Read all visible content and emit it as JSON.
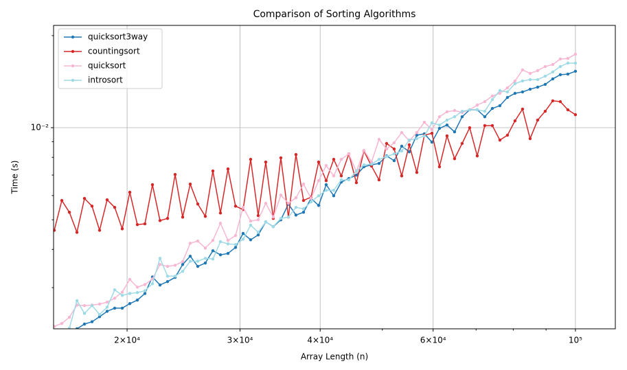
{
  "chart_data": {
    "type": "line",
    "title": "Comparison of Sorting Algorithms",
    "xlabel": "Array Length (n)",
    "ylabel": "Time (s)",
    "xscale": "log",
    "yscale": "log",
    "grid": true,
    "legend": "upper left",
    "xlim": [
      15360,
      115400
    ],
    "ylim": [
      0.0022,
      0.0216
    ],
    "xticks": [
      {
        "value": 20000,
        "label": "2×10⁴"
      },
      {
        "value": 30000,
        "label": "3×10⁴"
      },
      {
        "value": 40000,
        "label": "4×10⁴"
      },
      {
        "value": 60000,
        "label": "6×10⁴"
      },
      {
        "value": 100000,
        "label": "10⁵"
      }
    ],
    "xminorticks": [
      50000,
      70000,
      80000,
      90000
    ],
    "yticks": [
      {
        "value": 0.01,
        "label": "10⁻²"
      }
    ],
    "yminorticks": [
      0.003,
      0.004,
      0.005,
      0.006,
      0.007,
      0.008,
      0.009,
      0.02
    ],
    "x": [
      15399,
      15822,
      16257,
      16704,
      17163,
      17634,
      18119,
      18617,
      19129,
      19655,
      20195,
      20750,
      21320,
      21906,
      22508,
      23127,
      23763,
      24416,
      25087,
      25776,
      26485,
      27213,
      27961,
      28729,
      29519,
      30330,
      31164,
      32020,
      32900,
      33804,
      34733,
      35688,
      36669,
      37677,
      38713,
      39777,
      40870,
      41993,
      43147,
      44333,
      45552,
      46804,
      48090,
      49412,
      50770,
      52165,
      53599,
      55072,
      56586,
      58141,
      59739,
      61381,
      63068,
      64802,
      66583,
      68413,
      70293,
      72225,
      74210,
      76250,
      78346,
      80499,
      82712,
      84985,
      87321,
      89721,
      92187,
      94721,
      97325,
      100000
    ],
    "series": [
      {
        "name": "quicksort3way",
        "color": "#1f77b4",
        "values": [
          0.00207,
          0.00212,
          0.00216,
          0.0022,
          0.00228,
          0.00232,
          0.00241,
          0.00251,
          0.00257,
          0.00257,
          0.00266,
          0.00273,
          0.00287,
          0.00325,
          0.00306,
          0.00314,
          0.00324,
          0.00357,
          0.0038,
          0.00352,
          0.00361,
          0.00396,
          0.00384,
          0.00388,
          0.00406,
          0.00451,
          0.0043,
          0.00446,
          0.00492,
          0.00475,
          0.005,
          0.00563,
          0.00518,
          0.00529,
          0.00587,
          0.00557,
          0.00651,
          0.00599,
          0.00664,
          0.00682,
          0.007,
          0.00745,
          0.00756,
          0.00764,
          0.00809,
          0.0078,
          0.0087,
          0.00834,
          0.00945,
          0.00955,
          0.00897,
          0.00995,
          0.0102,
          0.00969,
          0.01086,
          0.01144,
          0.01144,
          0.01086,
          0.01156,
          0.0118,
          0.01256,
          0.01295,
          0.01309,
          0.01336,
          0.01357,
          0.01385,
          0.01444,
          0.0149,
          0.01497,
          0.01529
        ]
      },
      {
        "name": "countingsort",
        "color": "#d62728",
        "values": [
          0.00462,
          0.00578,
          0.00529,
          0.00455,
          0.00587,
          0.00554,
          0.00462,
          0.00581,
          0.00549,
          0.00467,
          0.00615,
          0.00482,
          0.00485,
          0.00651,
          0.00497,
          0.00505,
          0.00703,
          0.0051,
          0.00654,
          0.00563,
          0.00513,
          0.00722,
          0.00526,
          0.00733,
          0.00554,
          0.0054,
          0.00788,
          0.00516,
          0.00772,
          0.00505,
          0.00797,
          0.0051,
          0.00817,
          0.00578,
          0.00593,
          0.00772,
          0.00671,
          0.00788,
          0.00696,
          0.00821,
          0.00661,
          0.00839,
          0.00749,
          0.00675,
          0.00888,
          0.00852,
          0.00696,
          0.00879,
          0.00714,
          0.00945,
          0.00959,
          0.00745,
          0.0094,
          0.00792,
          0.00888,
          0.01,
          0.00809,
          0.01016,
          0.01016,
          0.00911,
          0.00945,
          0.01053,
          0.0115,
          0.00921,
          0.01059,
          0.01132,
          0.01224,
          0.01217,
          0.01144,
          0.01103
        ]
      },
      {
        "name": "quicksort",
        "color": "#f7b6d2",
        "values": [
          0.00224,
          0.00229,
          0.0024,
          0.00263,
          0.00262,
          0.00263,
          0.00265,
          0.00269,
          0.00277,
          0.0029,
          0.00319,
          0.00301,
          0.00307,
          0.0032,
          0.00357,
          0.00352,
          0.00355,
          0.00365,
          0.00419,
          0.00426,
          0.00404,
          0.00428,
          0.00487,
          0.00428,
          0.00444,
          0.00549,
          0.00495,
          0.005,
          0.00566,
          0.0051,
          0.00602,
          0.00566,
          0.0059,
          0.00654,
          0.00587,
          0.00671,
          0.00752,
          0.00696,
          0.00788,
          0.00821,
          0.00718,
          0.00843,
          0.00772,
          0.00916,
          0.00852,
          0.00893,
          0.00964,
          0.00906,
          0.00964,
          0.01042,
          0.00985,
          0.01086,
          0.01127,
          0.01138,
          0.01121,
          0.01144,
          0.01186,
          0.01217,
          0.01269,
          0.01295,
          0.0135,
          0.01422,
          0.01545,
          0.01505,
          0.01537,
          0.01585,
          0.01609,
          0.01677,
          0.01684,
          0.01739
        ]
      },
      {
        "name": "introsort",
        "color": "#9edae5",
        "values": [
          0.00197,
          0.00207,
          0.00221,
          0.00272,
          0.00247,
          0.00262,
          0.00245,
          0.00259,
          0.00295,
          0.00283,
          0.00287,
          0.00289,
          0.00293,
          0.00309,
          0.00374,
          0.00327,
          0.00327,
          0.00339,
          0.00366,
          0.00366,
          0.00374,
          0.00372,
          0.00424,
          0.00417,
          0.00415,
          0.00432,
          0.0048,
          0.00455,
          0.00492,
          0.00475,
          0.00505,
          0.0051,
          0.00549,
          0.00543,
          0.00572,
          0.00599,
          0.00624,
          0.00624,
          0.00675,
          0.00675,
          0.00722,
          0.00756,
          0.0076,
          0.00788,
          0.00805,
          0.00821,
          0.00839,
          0.00911,
          0.00921,
          0.0094,
          0.01037,
          0.0102,
          0.01059,
          0.01086,
          0.01132,
          0.01144,
          0.01144,
          0.01132,
          0.01236,
          0.01322,
          0.01309,
          0.01393,
          0.01422,
          0.01436,
          0.01436,
          0.01474,
          0.01521,
          0.01585,
          0.01626,
          0.01626
        ]
      }
    ]
  }
}
